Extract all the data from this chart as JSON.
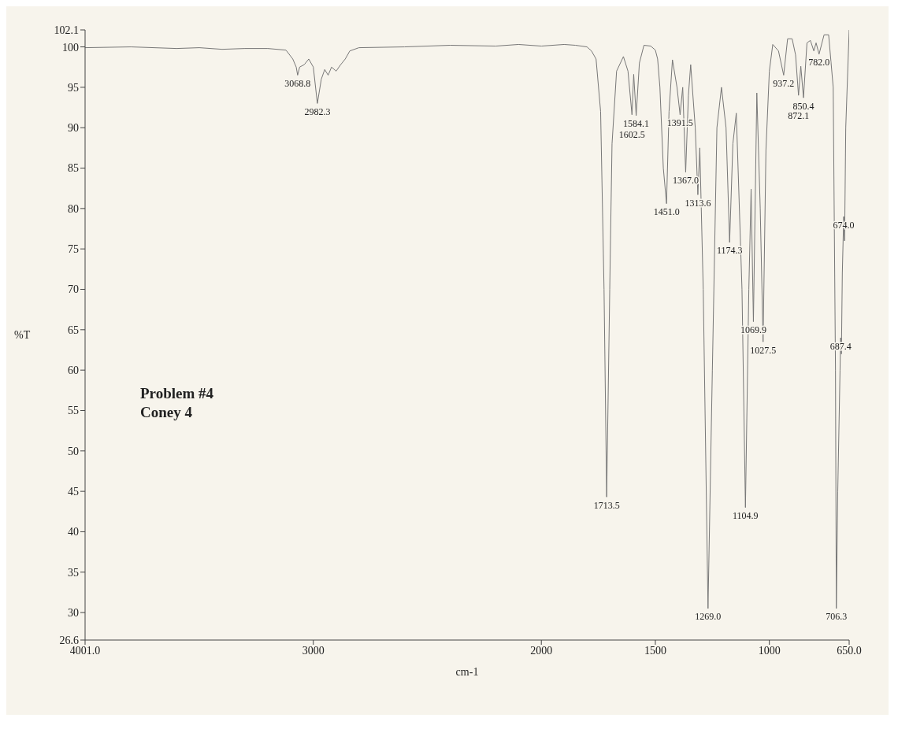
{
  "chart_data": {
    "type": "line",
    "xlabel": "cm-1",
    "ylabel": "%T",
    "xlim": [
      4001,
      650
    ],
    "ylim": [
      26.6,
      102.1
    ],
    "xticks": [
      {
        "value": 4001,
        "label": "4001.0"
      },
      3000,
      2000,
      1500,
      1000,
      {
        "value": 650,
        "label": "650.0"
      }
    ],
    "yticks": [
      26.6,
      30,
      35,
      40,
      45,
      50,
      55,
      60,
      65,
      70,
      75,
      80,
      85,
      90,
      95,
      100,
      102.1
    ],
    "marker": "none",
    "line_style": "solid",
    "series": [
      {
        "color": "#777777",
        "x": [
          4001,
          3800,
          3600,
          3500,
          3400,
          3300,
          3200,
          3120,
          3090,
          3075,
          3068.8,
          3060,
          3040,
          3020,
          3000,
          2982.3,
          2965,
          2950,
          2935,
          2920,
          2900,
          2880,
          2860,
          2840,
          2800,
          2600,
          2400,
          2200,
          2100,
          2000,
          1900,
          1850,
          1800,
          1780,
          1760,
          1740,
          1725,
          1713.5,
          1700,
          1690,
          1670,
          1640,
          1620,
          1602.5,
          1595,
          1584.1,
          1570,
          1550,
          1520,
          1500,
          1490,
          1480,
          1465,
          1451,
          1440,
          1425,
          1405,
          1391.5,
          1380,
          1367,
          1355,
          1345,
          1325,
          1313.6,
          1305,
          1290,
          1269,
          1250,
          1230,
          1210,
          1190,
          1174.3,
          1160,
          1145,
          1120,
          1104.9,
          1090,
          1080,
          1069.9,
          1055,
          1040,
          1027.5,
          1015,
          1000,
          985,
          960,
          937.2,
          920,
          900,
          885,
          872.1,
          862,
          850.4,
          835,
          820,
          805,
          795,
          782,
          760,
          740,
          720,
          710,
          706.3,
          700,
          690,
          687.4,
          684,
          680,
          674,
          670,
          665,
          650
        ],
        "values": [
          99.9,
          100,
          99.8,
          99.9,
          99.7,
          99.8,
          99.8,
          99.6,
          98.5,
          97.5,
          96.5,
          97.5,
          97.8,
          98.5,
          97.5,
          93,
          96,
          97.2,
          96.5,
          97.5,
          97,
          97.8,
          98.5,
          99.5,
          99.9,
          100,
          100.2,
          100.1,
          100.3,
          100.1,
          100.3,
          100.2,
          100,
          99.5,
          98.5,
          92,
          70,
          44.3,
          70,
          88,
          97,
          98.8,
          97,
          91.6,
          96.6,
          91.5,
          98,
          100.2,
          100.1,
          99.6,
          98.5,
          95,
          85,
          80.6,
          92,
          98.4,
          95,
          91.6,
          95,
          84.5,
          94,
          97.8,
          90,
          81.7,
          87.5,
          70,
          30.5,
          60,
          90,
          95,
          90,
          75.8,
          88,
          91.8,
          70,
          43,
          70,
          82.4,
          66,
          94.3,
          80,
          63.5,
          87.2,
          97,
          100.3,
          99.5,
          96.5,
          101,
          101,
          99,
          94,
          97.6,
          93.7,
          100.5,
          100.8,
          99.5,
          100.5,
          99.1,
          101.5,
          101.5,
          95,
          60,
          30.5,
          45,
          60,
          64,
          62,
          72,
          79,
          76,
          90,
          102.1
        ]
      }
    ],
    "annotations": [
      {
        "text": "3068.8",
        "x": 3068.8,
        "y": 96.5
      },
      {
        "text": "2982.3",
        "x": 2982.3,
        "y": 93
      },
      {
        "text": "1713.5",
        "x": 1713.5,
        "y": 44.3
      },
      {
        "text": "1602.5",
        "x": 1602.5,
        "y": 91.6
      },
      {
        "text": "1584.1",
        "x": 1584.1,
        "y": 91.5
      },
      {
        "text": "1451.0",
        "x": 1451,
        "y": 80.6
      },
      {
        "text": "1391.5",
        "x": 1391.5,
        "y": 91.6
      },
      {
        "text": "1367.0",
        "x": 1367,
        "y": 84.5
      },
      {
        "text": "1313.6",
        "x": 1313.6,
        "y": 81.7
      },
      {
        "text": "1269.0",
        "x": 1269,
        "y": 30.5
      },
      {
        "text": "1174.3",
        "x": 1174.3,
        "y": 75.8
      },
      {
        "text": "1104.9",
        "x": 1104.9,
        "y": 43
      },
      {
        "text": "1069.9",
        "x": 1069.9,
        "y": 66
      },
      {
        "text": "1027.5",
        "x": 1027.5,
        "y": 63.5
      },
      {
        "text": "937.2",
        "x": 937.2,
        "y": 96.5
      },
      {
        "text": "872.1",
        "x": 872.1,
        "y": 94
      },
      {
        "text": "850.4",
        "x": 850.4,
        "y": 93.7
      },
      {
        "text": "782.0",
        "x": 782,
        "y": 99.1
      },
      {
        "text": "706.3",
        "x": 706.3,
        "y": 30.5
      },
      {
        "text": "687.4",
        "x": 687.4,
        "y": 64
      },
      {
        "text": "674.0",
        "x": 674,
        "y": 79
      },
      "Problem #4",
      "Coney 4"
    ]
  }
}
